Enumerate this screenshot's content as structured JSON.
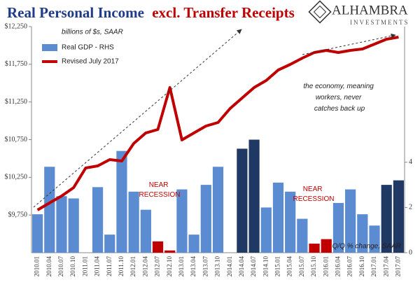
{
  "logo": {
    "name": "ALHAMBRA",
    "tagline": "INVESTMENTS"
  },
  "chart_data": {
    "type": "combo",
    "title": "Real Personal Income",
    "title_emphasis": "excl. Transfer Receipts",
    "units_label": "billions of $s, SAAR",
    "y2_label": "Q/Q % change, SAAR",
    "annotations": [
      [
        "the economy, meaning",
        "workers, never",
        "catches back up"
      ],
      [
        "NEAR",
        "RECESSION"
      ],
      [
        "NEAR",
        "RECESSION"
      ]
    ],
    "categories": [
      "2010.01",
      "2010.04",
      "2010.07",
      "2010.10",
      "2011.01",
      "2011.04",
      "2011.07",
      "2011.10",
      "2012.01",
      "2012.04",
      "2012.07",
      "2012.10",
      "2013.01",
      "2013.04",
      "2013.07",
      "2013.10",
      "2014.01",
      "2014.04",
      "2014.07",
      "2014.10",
      "2015.01",
      "2015.04",
      "2015.07",
      "2015.10",
      "2016.01",
      "2016.04",
      "2016.07",
      "2016.10",
      "2017.01",
      "2017.04",
      "2017.07"
    ],
    "ylim": [
      9250,
      12250
    ],
    "yticks": [
      {
        "value": 9750,
        "label": "$9,750"
      },
      {
        "value": 10250,
        "label": "$10,250"
      },
      {
        "value": 10750,
        "label": "$10,750"
      },
      {
        "value": 11250,
        "label": "$11,250"
      },
      {
        "value": 11750,
        "label": "$11,750"
      },
      {
        "value": 12250,
        "label": "$12,250"
      }
    ],
    "y2lim": [
      0,
      10
    ],
    "y2ticks": [
      0,
      2,
      4
    ],
    "series": [
      {
        "name": "Real GDP - RHS",
        "type": "bar",
        "axis": "y2",
        "color": "#5b8bd0",
        "colors": [
          "#5b8bd0",
          "#5b8bd0",
          "#5b8bd0",
          "#5b8bd0",
          "#5b8bd0",
          "#5b8bd0",
          "#5b8bd0",
          "#5b8bd0",
          "#5b8bd0",
          "#5b8bd0",
          "#c00000",
          "#c00000",
          "#5b8bd0",
          "#5b8bd0",
          "#5b8bd0",
          "#5b8bd0",
          "#5b8bd0",
          "#1f3864",
          "#1f3864",
          "#5b8bd0",
          "#5b8bd0",
          "#5b8bd0",
          "#5b8bd0",
          "#c00000",
          "#c00000",
          "#5b8bd0",
          "#5b8bd0",
          "#5b8bd0",
          "#5b8bd0",
          "#1f3864",
          "#1f3864"
        ],
        "values": [
          1.7,
          3.8,
          2.5,
          2.4,
          null,
          2.9,
          0.8,
          4.5,
          2.7,
          1.9,
          0.5,
          0.1,
          2.8,
          0.8,
          3.0,
          3.8,
          null,
          4.6,
          5.0,
          2.0,
          3.1,
          2.7,
          1.5,
          0.4,
          0.6,
          2.2,
          2.8,
          1.7,
          1.2,
          3.0,
          3.2
        ]
      },
      {
        "name": "Revised July 2017",
        "type": "line",
        "color": "#c00000",
        "values": [
          9817,
          9910,
          10002,
          10114,
          10374,
          10402,
          10485,
          10467,
          10700,
          10839,
          10885,
          11442,
          10746,
          10839,
          10931,
          10978,
          11163,
          11303,
          11442,
          11535,
          11674,
          11748,
          11832,
          11906,
          11934,
          11906,
          11934,
          11953,
          12018,
          12083,
          12111
        ]
      }
    ]
  }
}
